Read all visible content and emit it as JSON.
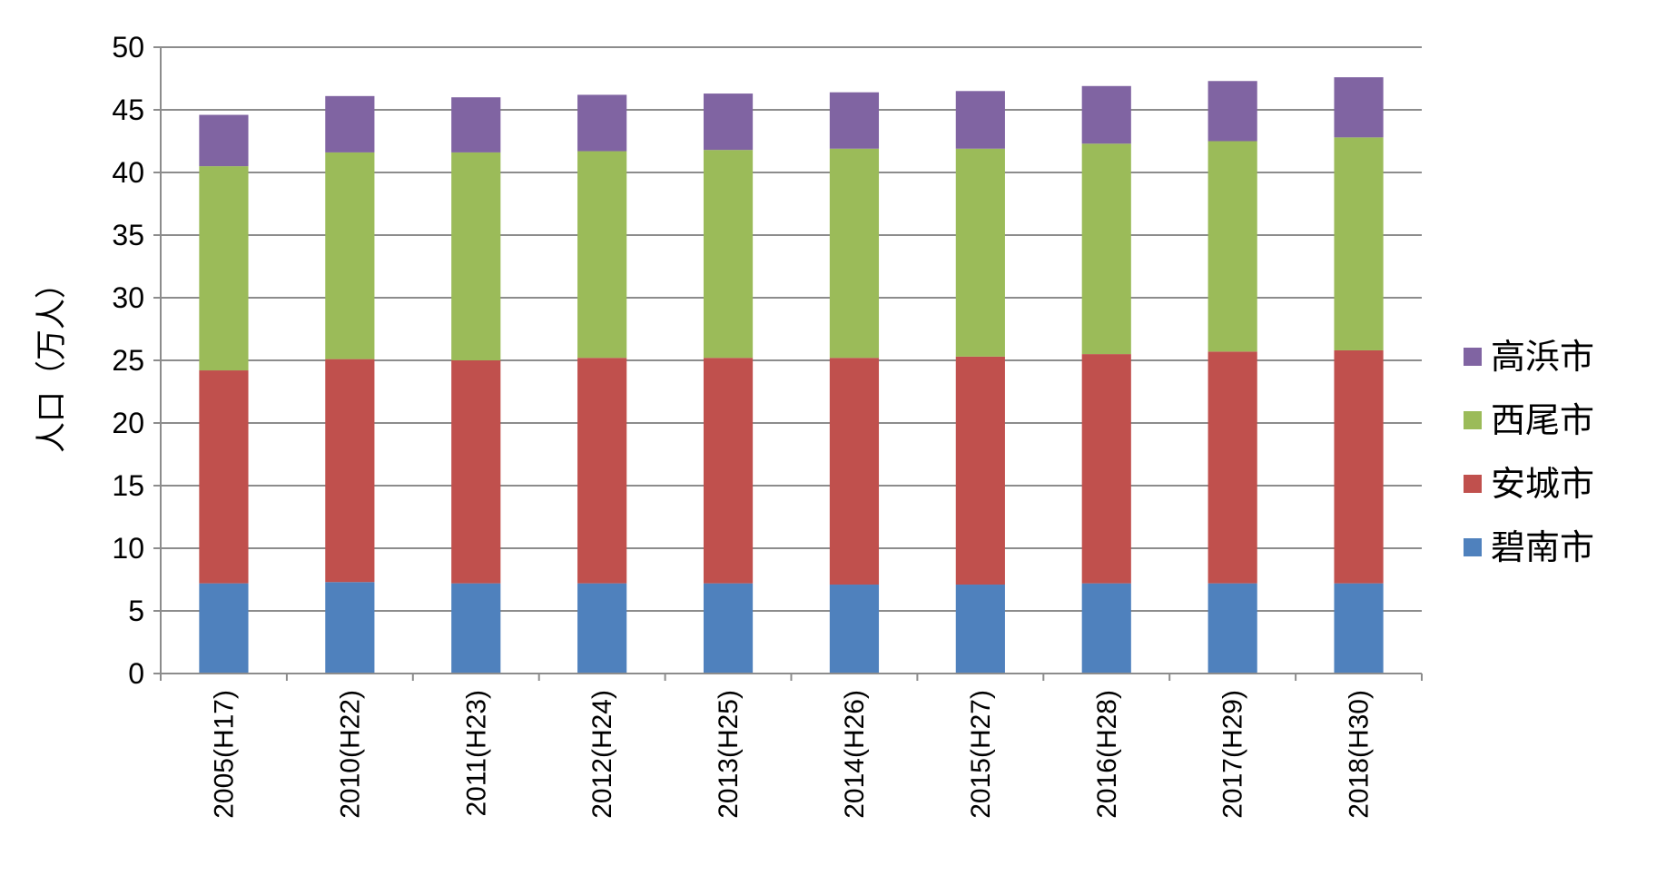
{
  "chart_data": {
    "type": "bar",
    "stacked": true,
    "title": "",
    "xlabel": "",
    "ylabel": "人口（万人）",
    "ylim": [
      0,
      50
    ],
    "yticks": [
      0,
      5,
      10,
      15,
      20,
      25,
      30,
      35,
      40,
      45,
      50
    ],
    "grid": true,
    "legend_position": "right",
    "categories": [
      "2005(H17)",
      "2010(H22)",
      "2011(H23)",
      "2012(H24)",
      "2013(H25)",
      "2014(H26)",
      "2015(H27)",
      "2016(H28)",
      "2017(H29)",
      "2018(H30)"
    ],
    "series": [
      {
        "name": "碧南市",
        "color": "#4f81bd",
        "values": [
          7.2,
          7.3,
          7.2,
          7.2,
          7.2,
          7.1,
          7.1,
          7.2,
          7.2,
          7.2
        ]
      },
      {
        "name": "安城市",
        "color": "#c0504d",
        "values": [
          17.0,
          17.8,
          17.8,
          18.0,
          18.0,
          18.1,
          18.2,
          18.3,
          18.5,
          18.6
        ]
      },
      {
        "name": "西尾市",
        "color": "#9bbb59",
        "values": [
          16.3,
          16.5,
          16.6,
          16.5,
          16.6,
          16.7,
          16.6,
          16.8,
          16.8,
          17.0
        ]
      },
      {
        "name": "高浜市",
        "color": "#8064a2",
        "values": [
          4.1,
          4.5,
          4.4,
          4.5,
          4.5,
          4.5,
          4.6,
          4.6,
          4.8,
          4.8
        ]
      }
    ]
  }
}
